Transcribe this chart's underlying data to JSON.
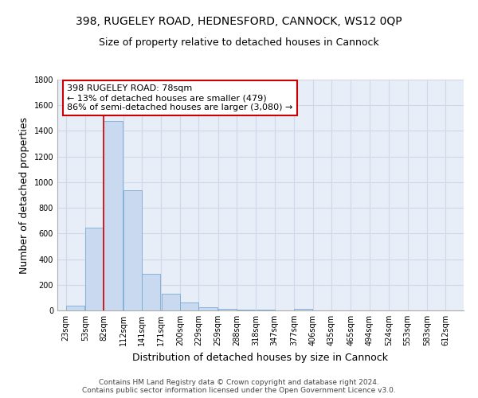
{
  "title1": "398, RUGELEY ROAD, HEDNESFORD, CANNOCK, WS12 0QP",
  "title2": "Size of property relative to detached houses in Cannock",
  "xlabel": "Distribution of detached houses by size in Cannock",
  "ylabel": "Number of detached properties",
  "footer1": "Contains HM Land Registry data © Crown copyright and database right 2024.",
  "footer2": "Contains public sector information licensed under the Open Government Licence v3.0.",
  "annotation_line1": "398 RUGELEY ROAD: 78sqm",
  "annotation_line2": "← 13% of detached houses are smaller (479)",
  "annotation_line3": "86% of semi-detached houses are larger (3,080) →",
  "bar_left_edges": [
    23,
    53,
    82,
    112,
    141,
    171,
    200,
    229,
    259,
    288,
    318,
    347,
    377,
    406,
    435,
    465,
    494,
    524,
    553,
    583
  ],
  "bar_widths": [
    29,
    29,
    29,
    29,
    29,
    29,
    29,
    29,
    29,
    29,
    29,
    29,
    29,
    29,
    29,
    29,
    29,
    29,
    29,
    29
  ],
  "bar_heights": [
    40,
    645,
    1475,
    938,
    285,
    130,
    65,
    22,
    15,
    5,
    5,
    0,
    15,
    0,
    0,
    0,
    0,
    0,
    0,
    0
  ],
  "bar_color": "#c8d9f0",
  "bar_edge_color": "#7aaad4",
  "red_line_x": 82,
  "ylim": [
    0,
    1800
  ],
  "yticks": [
    0,
    200,
    400,
    600,
    800,
    1000,
    1200,
    1400,
    1600,
    1800
  ],
  "xtick_labels": [
    "23sqm",
    "53sqm",
    "82sqm",
    "112sqm",
    "141sqm",
    "171sqm",
    "200sqm",
    "229sqm",
    "259sqm",
    "288sqm",
    "318sqm",
    "347sqm",
    "377sqm",
    "406sqm",
    "435sqm",
    "465sqm",
    "494sqm",
    "524sqm",
    "553sqm",
    "583sqm",
    "612sqm"
  ],
  "xtick_positions": [
    23,
    53,
    82,
    112,
    141,
    171,
    200,
    229,
    259,
    288,
    318,
    347,
    377,
    406,
    435,
    465,
    494,
    524,
    553,
    583,
    612
  ],
  "grid_color": "#d0d8e8",
  "bg_color": "#e8eef8",
  "box_color": "#cc0000",
  "title1_fontsize": 10,
  "title2_fontsize": 9,
  "annotation_fontsize": 8,
  "axis_label_fontsize": 9,
  "tick_fontsize": 7,
  "footer_fontsize": 6.5
}
